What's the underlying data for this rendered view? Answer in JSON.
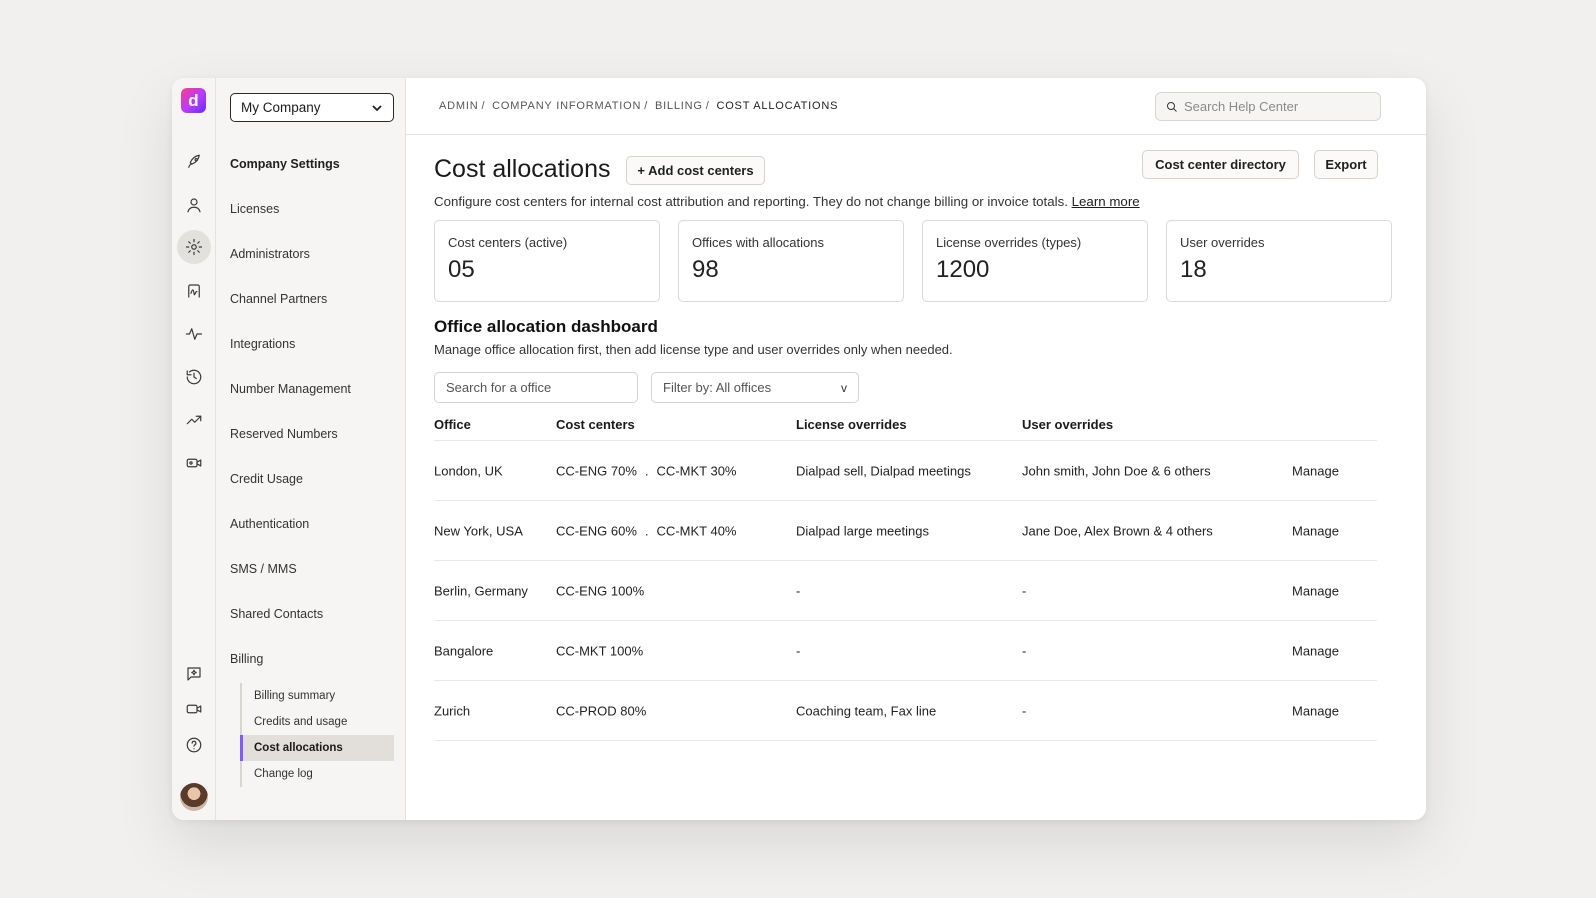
{
  "company_select": {
    "label": "My Company"
  },
  "nav": {
    "heading": "Company Settings",
    "items": [
      "Licenses",
      "Administrators",
      "Channel Partners",
      "Integrations",
      "Number Management",
      "Reserved Numbers",
      "Credit Usage",
      "Authentication",
      "SMS / MMS",
      "Shared Contacts",
      "Billing"
    ],
    "billing_sub": [
      "Billing summary",
      "Credits and usage",
      "Cost allocations",
      "Change log"
    ],
    "active_sub": "Cost allocations"
  },
  "rail_icons": [
    "rocket-icon",
    "user-icon",
    "gear-icon",
    "signature-icon",
    "pulse-icon",
    "history-icon",
    "trend-icon",
    "video-record-icon",
    "sparkle-chat-icon",
    "video-icon",
    "help-icon"
  ],
  "breadcrumb": {
    "items": [
      "Admin",
      "Company Information",
      "Billing"
    ],
    "current": "Cost allocations"
  },
  "help_search": {
    "placeholder": "Search Help Center"
  },
  "page": {
    "title": "Cost allocations",
    "add_button": "+ Add cost centers",
    "directory_button": "Cost center directory",
    "export_button": "Export",
    "description": "Configure cost centers for internal cost attribution and reporting. They do not change billing or invoice totals.",
    "learn_more": "Learn more"
  },
  "stats": [
    {
      "label": "Cost centers (active)",
      "value": "05"
    },
    {
      "label": "Offices with allocations",
      "value": "98"
    },
    {
      "label": "License overrides (types)",
      "value": "1200"
    },
    {
      "label": "User overrides",
      "value": "18"
    }
  ],
  "dashboard": {
    "title": "Office allocation dashboard",
    "description": "Manage office allocation first, then add license type and user overrides only when needed.",
    "search_placeholder": "Search for a office",
    "filter_label": "Filter by: All offices",
    "filter_chevron": "v"
  },
  "table": {
    "headers": [
      "Office",
      "Cost centers",
      "License overrides",
      "User overrides"
    ],
    "rows": [
      {
        "office": "London, UK",
        "cc1": "CC-ENG 70%",
        "sep": ".",
        "cc2": "CC-MKT 30%",
        "license": "Dialpad sell, Dialpad meetings",
        "users": "John smith, John Doe & 6 others",
        "action": "Manage"
      },
      {
        "office": "New York, USA",
        "cc1": "CC-ENG 60%",
        "sep": ".",
        "cc2": "CC-MKT 40%",
        "license": "Dialpad large meetings",
        "users": "Jane Doe, Alex Brown & 4 others",
        "action": "Manage"
      },
      {
        "office": "Berlin, Germany",
        "cc1": "CC-ENG 100%",
        "sep": "",
        "cc2": "",
        "license": "-",
        "users": "-",
        "action": "Manage"
      },
      {
        "office": "Bangalore",
        "cc1": "CC-MKT 100%",
        "sep": "",
        "cc2": "",
        "license": "-",
        "users": "-",
        "action": "Manage"
      },
      {
        "office": "Zurich",
        "cc1": "CC-PROD 80%",
        "sep": "",
        "cc2": "",
        "license": "Coaching team, Fax line",
        "users": "-",
        "action": "Manage"
      }
    ]
  },
  "colors": {
    "accent": "#7c5cff",
    "logo_gradient_start": "#ff3d8b",
    "logo_gradient_end": "#6a2bff"
  }
}
